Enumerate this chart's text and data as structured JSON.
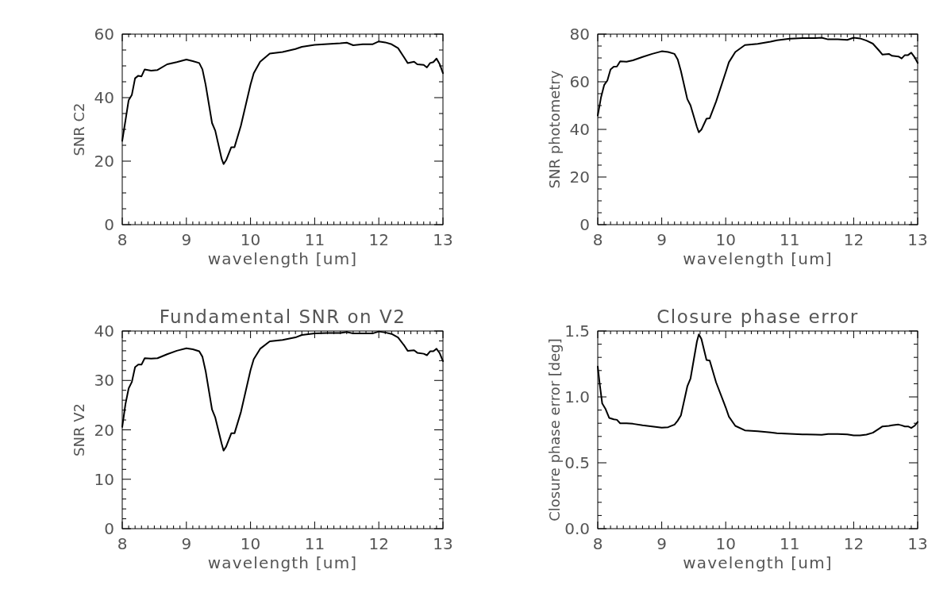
{
  "chart_data": [
    {
      "type": "line",
      "xlabel": "wavelength [um]",
      "ylabel": "SNR C2",
      "color": "#000000",
      "xlim": [
        8,
        13
      ],
      "ylim": [
        0,
        60
      ],
      "x": [
        8.0,
        8.05,
        8.1,
        8.15,
        8.2,
        8.25,
        8.3,
        8.35,
        8.45,
        8.55,
        8.7,
        8.85,
        9.0,
        9.1,
        9.2,
        9.25,
        9.3,
        9.4,
        9.45,
        9.55,
        9.58,
        9.62,
        9.7,
        9.75,
        9.85,
        10.0,
        10.05,
        10.15,
        10.3,
        10.5,
        10.7,
        10.8,
        11.0,
        11.2,
        11.4,
        11.5,
        11.6,
        11.75,
        11.9,
        12.0,
        12.1,
        12.2,
        12.3,
        12.4,
        12.45,
        12.55,
        12.6,
        12.7,
        12.75,
        12.8,
        12.85,
        12.9,
        12.95,
        13.0
      ],
      "values": [
        26.4,
        32.8,
        39.2,
        40.9,
        46.1,
        46.9,
        46.7,
        48.9,
        48.5,
        48.7,
        50.5,
        51.2,
        52.0,
        51.5,
        50.9,
        48.9,
        44.1,
        32.0,
        29.6,
        20.7,
        19.1,
        20.3,
        24.4,
        24.4,
        31.2,
        44.1,
        47.7,
        51.3,
        53.9,
        54.4,
        55.3,
        56.0,
        56.6,
        56.9,
        57.1,
        57.3,
        56.5,
        56.8,
        56.8,
        57.7,
        57.4,
        56.8,
        55.6,
        52.5,
        50.9,
        51.3,
        50.5,
        50.3,
        49.5,
        50.9,
        51.2,
        52.3,
        50.5,
        47.7
      ],
      "xticks": [
        8,
        {
          "value": 8.1,
          "label": null
        },
        {
          "value": 8.2,
          "label": null
        },
        {
          "value": 8.3,
          "label": null
        },
        {
          "value": 8.4,
          "label": null
        },
        {
          "value": 8.5,
          "label": null
        },
        {
          "value": 8.6,
          "label": null
        },
        {
          "value": 8.7,
          "label": null
        },
        {
          "value": 8.8,
          "label": null
        },
        {
          "value": 8.9,
          "label": null
        },
        9,
        {
          "value": 9.1,
          "label": null
        },
        {
          "value": 9.2,
          "label": null
        },
        {
          "value": 9.3,
          "label": null
        },
        {
          "value": 9.4,
          "label": null
        },
        {
          "value": 9.5,
          "label": null
        },
        {
          "value": 9.6,
          "label": null
        },
        {
          "value": 9.7,
          "label": null
        },
        {
          "value": 9.8,
          "label": null
        },
        {
          "value": 9.9,
          "label": null
        },
        10,
        {
          "value": 10.1,
          "label": null
        },
        {
          "value": 10.2,
          "label": null
        },
        {
          "value": 10.3,
          "label": null
        },
        {
          "value": 10.4,
          "label": null
        },
        {
          "value": 10.5,
          "label": null
        },
        {
          "value": 10.6,
          "label": null
        },
        {
          "value": 10.7,
          "label": null
        },
        {
          "value": 10.8,
          "label": null
        },
        {
          "value": 10.9,
          "label": null
        },
        11,
        {
          "value": 11.1,
          "label": null
        },
        {
          "value": 11.2,
          "label": null
        },
        {
          "value": 11.3,
          "label": null
        },
        {
          "value": 11.4,
          "label": null
        },
        {
          "value": 11.5,
          "label": null
        },
        {
          "value": 11.6,
          "label": null
        },
        {
          "value": 11.7,
          "label": null
        },
        {
          "value": 11.8,
          "label": null
        },
        {
          "value": 11.9,
          "label": null
        },
        12,
        {
          "value": 12.1,
          "label": null
        },
        {
          "value": 12.2,
          "label": null
        },
        {
          "value": 12.3,
          "label": null
        },
        {
          "value": 12.4,
          "label": null
        },
        {
          "value": 12.5,
          "label": null
        },
        {
          "value": 12.6,
          "label": null
        },
        {
          "value": 12.7,
          "label": null
        },
        {
          "value": 12.8,
          "label": null
        },
        {
          "value": 12.9,
          "label": null
        },
        13
      ],
      "yticks": [
        0,
        {
          "value": 5,
          "label": null
        },
        {
          "value": 10,
          "label": null
        },
        {
          "value": 15,
          "label": null
        },
        20,
        {
          "value": 25,
          "label": null
        },
        {
          "value": 30,
          "label": null
        },
        {
          "value": 35,
          "label": null
        },
        40,
        {
          "value": 45,
          "label": null
        },
        {
          "value": 50,
          "label": null
        },
        {
          "value": 55,
          "label": null
        },
        60
      ]
    },
    {
      "type": "line",
      "xlabel": "wavelength [um]",
      "ylabel": "SNR photometry",
      "color": "#000000",
      "xlim": [
        8,
        13
      ],
      "ylim": [
        0,
        80
      ],
      "x": [
        8.0,
        8.05,
        8.1,
        8.15,
        8.2,
        8.25,
        8.3,
        8.35,
        8.45,
        8.55,
        8.7,
        8.85,
        9.0,
        9.1,
        9.2,
        9.25,
        9.3,
        9.4,
        9.45,
        9.55,
        9.58,
        9.62,
        9.7,
        9.75,
        9.85,
        10.0,
        10.05,
        10.15,
        10.3,
        10.5,
        10.7,
        10.8,
        11.0,
        11.2,
        11.4,
        11.5,
        11.6,
        11.75,
        11.9,
        12.0,
        12.1,
        12.2,
        12.3,
        12.4,
        12.45,
        12.55,
        12.6,
        12.7,
        12.75,
        12.8,
        12.85,
        12.9,
        12.95,
        13.0
      ],
      "values": [
        45.8,
        53.3,
        58.6,
        60.5,
        65.2,
        66.3,
        66.4,
        68.6,
        68.4,
        69.0,
        70.4,
        71.7,
        72.8,
        72.5,
        71.7,
        69.3,
        64.5,
        52.7,
        50.1,
        41.0,
        38.8,
        39.9,
        44.5,
        44.7,
        51.7,
        64.0,
        68.2,
        72.5,
        75.4,
        75.9,
        76.8,
        77.4,
        78.1,
        78.3,
        78.3,
        78.5,
        77.8,
        77.8,
        77.6,
        78.5,
        78.2,
        77.3,
        76.0,
        73.0,
        71.4,
        71.7,
        70.9,
        70.6,
        69.8,
        71.2,
        71.2,
        72.2,
        70.4,
        67.9
      ],
      "xticks": [
        8,
        {
          "value": 8.1,
          "label": null
        },
        {
          "value": 8.2,
          "label": null
        },
        {
          "value": 8.3,
          "label": null
        },
        {
          "value": 8.4,
          "label": null
        },
        {
          "value": 8.5,
          "label": null
        },
        {
          "value": 8.6,
          "label": null
        },
        {
          "value": 8.7,
          "label": null
        },
        {
          "value": 8.8,
          "label": null
        },
        {
          "value": 8.9,
          "label": null
        },
        9,
        {
          "value": 9.1,
          "label": null
        },
        {
          "value": 9.2,
          "label": null
        },
        {
          "value": 9.3,
          "label": null
        },
        {
          "value": 9.4,
          "label": null
        },
        {
          "value": 9.5,
          "label": null
        },
        {
          "value": 9.6,
          "label": null
        },
        {
          "value": 9.7,
          "label": null
        },
        {
          "value": 9.8,
          "label": null
        },
        {
          "value": 9.9,
          "label": null
        },
        10,
        {
          "value": 10.1,
          "label": null
        },
        {
          "value": 10.2,
          "label": null
        },
        {
          "value": 10.3,
          "label": null
        },
        {
          "value": 10.4,
          "label": null
        },
        {
          "value": 10.5,
          "label": null
        },
        {
          "value": 10.6,
          "label": null
        },
        {
          "value": 10.7,
          "label": null
        },
        {
          "value": 10.8,
          "label": null
        },
        {
          "value": 10.9,
          "label": null
        },
        11,
        {
          "value": 11.1,
          "label": null
        },
        {
          "value": 11.2,
          "label": null
        },
        {
          "value": 11.3,
          "label": null
        },
        {
          "value": 11.4,
          "label": null
        },
        {
          "value": 11.5,
          "label": null
        },
        {
          "value": 11.6,
          "label": null
        },
        {
          "value": 11.7,
          "label": null
        },
        {
          "value": 11.8,
          "label": null
        },
        {
          "value": 11.9,
          "label": null
        },
        12,
        {
          "value": 12.1,
          "label": null
        },
        {
          "value": 12.2,
          "label": null
        },
        {
          "value": 12.3,
          "label": null
        },
        {
          "value": 12.4,
          "label": null
        },
        {
          "value": 12.5,
          "label": null
        },
        {
          "value": 12.6,
          "label": null
        },
        {
          "value": 12.7,
          "label": null
        },
        {
          "value": 12.8,
          "label": null
        },
        {
          "value": 12.9,
          "label": null
        },
        13
      ],
      "yticks": [
        0,
        {
          "value": 5,
          "label": null
        },
        {
          "value": 10,
          "label": null
        },
        {
          "value": 15,
          "label": null
        },
        20,
        {
          "value": 25,
          "label": null
        },
        {
          "value": 30,
          "label": null
        },
        {
          "value": 35,
          "label": null
        },
        40,
        {
          "value": 45,
          "label": null
        },
        {
          "value": 50,
          "label": null
        },
        {
          "value": 55,
          "label": null
        },
        60,
        {
          "value": 65,
          "label": null
        },
        {
          "value": 70,
          "label": null
        },
        {
          "value": 75,
          "label": null
        },
        80
      ]
    },
    {
      "type": "line",
      "title": "Fundamental SNR on V2",
      "xlabel": "wavelength [um]",
      "ylabel": "SNR V2",
      "color": "#000000",
      "xlim": [
        8,
        13
      ],
      "ylim": [
        0,
        40
      ],
      "x": [
        8.0,
        8.05,
        8.1,
        8.15,
        8.2,
        8.25,
        8.3,
        8.35,
        8.45,
        8.55,
        8.7,
        8.85,
        9.0,
        9.1,
        9.2,
        9.25,
        9.3,
        9.4,
        9.45,
        9.55,
        9.58,
        9.62,
        9.7,
        9.75,
        9.85,
        10.0,
        10.05,
        10.15,
        10.3,
        10.5,
        10.7,
        10.8,
        11.0,
        11.2,
        11.4,
        11.5,
        11.6,
        11.75,
        11.9,
        12.0,
        12.1,
        12.2,
        12.3,
        12.4,
        12.45,
        12.55,
        12.6,
        12.7,
        12.75,
        12.8,
        12.85,
        12.9,
        12.95,
        13.0
      ],
      "values": [
        20.6,
        25.2,
        28.4,
        29.7,
        32.7,
        33.2,
        33.2,
        34.5,
        34.4,
        34.5,
        35.3,
        36.0,
        36.5,
        36.3,
        35.9,
        34.8,
        31.9,
        24.1,
        22.5,
        17.2,
        15.8,
        16.6,
        19.3,
        19.3,
        23.6,
        32.1,
        34.3,
        36.4,
        37.9,
        38.2,
        38.7,
        39.2,
        39.5,
        39.6,
        39.6,
        39.8,
        39.5,
        39.5,
        39.5,
        39.9,
        39.7,
        39.4,
        38.7,
        37.0,
        36.0,
        36.1,
        35.6,
        35.4,
        35.1,
        35.9,
        35.9,
        36.4,
        35.5,
        33.9
      ],
      "xticks": [
        8,
        {
          "value": 8.1,
          "label": null
        },
        {
          "value": 8.2,
          "label": null
        },
        {
          "value": 8.3,
          "label": null
        },
        {
          "value": 8.4,
          "label": null
        },
        {
          "value": 8.5,
          "label": null
        },
        {
          "value": 8.6,
          "label": null
        },
        {
          "value": 8.7,
          "label": null
        },
        {
          "value": 8.8,
          "label": null
        },
        {
          "value": 8.9,
          "label": null
        },
        9,
        {
          "value": 9.1,
          "label": null
        },
        {
          "value": 9.2,
          "label": null
        },
        {
          "value": 9.3,
          "label": null
        },
        {
          "value": 9.4,
          "label": null
        },
        {
          "value": 9.5,
          "label": null
        },
        {
          "value": 9.6,
          "label": null
        },
        {
          "value": 9.7,
          "label": null
        },
        {
          "value": 9.8,
          "label": null
        },
        {
          "value": 9.9,
          "label": null
        },
        10,
        {
          "value": 10.1,
          "label": null
        },
        {
          "value": 10.2,
          "label": null
        },
        {
          "value": 10.3,
          "label": null
        },
        {
          "value": 10.4,
          "label": null
        },
        {
          "value": 10.5,
          "label": null
        },
        {
          "value": 10.6,
          "label": null
        },
        {
          "value": 10.7,
          "label": null
        },
        {
          "value": 10.8,
          "label": null
        },
        {
          "value": 10.9,
          "label": null
        },
        11,
        {
          "value": 11.1,
          "label": null
        },
        {
          "value": 11.2,
          "label": null
        },
        {
          "value": 11.3,
          "label": null
        },
        {
          "value": 11.4,
          "label": null
        },
        {
          "value": 11.5,
          "label": null
        },
        {
          "value": 11.6,
          "label": null
        },
        {
          "value": 11.7,
          "label": null
        },
        {
          "value": 11.8,
          "label": null
        },
        {
          "value": 11.9,
          "label": null
        },
        12,
        {
          "value": 12.1,
          "label": null
        },
        {
          "value": 12.2,
          "label": null
        },
        {
          "value": 12.3,
          "label": null
        },
        {
          "value": 12.4,
          "label": null
        },
        {
          "value": 12.5,
          "label": null
        },
        {
          "value": 12.6,
          "label": null
        },
        {
          "value": 12.7,
          "label": null
        },
        {
          "value": 12.8,
          "label": null
        },
        {
          "value": 12.9,
          "label": null
        },
        13
      ],
      "yticks": [
        0,
        {
          "value": 2,
          "label": null
        },
        {
          "value": 4,
          "label": null
        },
        {
          "value": 6,
          "label": null
        },
        {
          "value": 8,
          "label": null
        },
        10,
        {
          "value": 12,
          "label": null
        },
        {
          "value": 14,
          "label": null
        },
        {
          "value": 16,
          "label": null
        },
        {
          "value": 18,
          "label": null
        },
        20,
        {
          "value": 22,
          "label": null
        },
        {
          "value": 24,
          "label": null
        },
        {
          "value": 26,
          "label": null
        },
        {
          "value": 28,
          "label": null
        },
        30,
        {
          "value": 32,
          "label": null
        },
        {
          "value": 34,
          "label": null
        },
        {
          "value": 36,
          "label": null
        },
        {
          "value": 38,
          "label": null
        },
        40
      ]
    },
    {
      "type": "line",
      "title": "Closure phase error",
      "xlabel": "wavelength [um]",
      "ylabel": "Closure phase error [deg]",
      "color": "#000000",
      "xlim": [
        8,
        13
      ],
      "ylim": [
        0,
        1.5
      ],
      "x": [
        8.0,
        8.03,
        8.07,
        8.12,
        8.18,
        8.25,
        8.3,
        8.35,
        8.45,
        8.55,
        8.7,
        8.85,
        9.0,
        9.1,
        9.2,
        9.25,
        9.3,
        9.4,
        9.45,
        9.5,
        9.55,
        9.58,
        9.62,
        9.7,
        9.75,
        9.85,
        10.0,
        10.05,
        10.15,
        10.3,
        10.5,
        10.7,
        10.8,
        11.0,
        11.2,
        11.4,
        11.5,
        11.6,
        11.75,
        11.9,
        12.0,
        12.1,
        12.2,
        12.3,
        12.4,
        12.45,
        12.55,
        12.6,
        12.7,
        12.75,
        12.8,
        12.85,
        12.9,
        12.95,
        13.0
      ],
      "values": [
        1.23,
        1.1,
        0.95,
        0.91,
        0.84,
        0.83,
        0.826,
        0.8,
        0.8,
        0.796,
        0.784,
        0.776,
        0.766,
        0.77,
        0.79,
        0.82,
        0.86,
        1.08,
        1.14,
        1.28,
        1.42,
        1.474,
        1.44,
        1.28,
        1.276,
        1.11,
        0.92,
        0.85,
        0.78,
        0.746,
        0.74,
        0.73,
        0.724,
        0.72,
        0.716,
        0.714,
        0.712,
        0.718,
        0.718,
        0.716,
        0.708,
        0.708,
        0.714,
        0.728,
        0.76,
        0.776,
        0.78,
        0.784,
        0.79,
        0.784,
        0.776,
        0.776,
        0.764,
        0.78,
        0.81
      ],
      "xticks": [
        8,
        {
          "value": 8.1,
          "label": null
        },
        {
          "value": 8.2,
          "label": null
        },
        {
          "value": 8.3,
          "label": null
        },
        {
          "value": 8.4,
          "label": null
        },
        {
          "value": 8.5,
          "label": null
        },
        {
          "value": 8.6,
          "label": null
        },
        {
          "value": 8.7,
          "label": null
        },
        {
          "value": 8.8,
          "label": null
        },
        {
          "value": 8.9,
          "label": null
        },
        9,
        {
          "value": 9.1,
          "label": null
        },
        {
          "value": 9.2,
          "label": null
        },
        {
          "value": 9.3,
          "label": null
        },
        {
          "value": 9.4,
          "label": null
        },
        {
          "value": 9.5,
          "label": null
        },
        {
          "value": 9.6,
          "label": null
        },
        {
          "value": 9.7,
          "label": null
        },
        {
          "value": 9.8,
          "label": null
        },
        {
          "value": 9.9,
          "label": null
        },
        10,
        {
          "value": 10.1,
          "label": null
        },
        {
          "value": 10.2,
          "label": null
        },
        {
          "value": 10.3,
          "label": null
        },
        {
          "value": 10.4,
          "label": null
        },
        {
          "value": 10.5,
          "label": null
        },
        {
          "value": 10.6,
          "label": null
        },
        {
          "value": 10.7,
          "label": null
        },
        {
          "value": 10.8,
          "label": null
        },
        {
          "value": 10.9,
          "label": null
        },
        11,
        {
          "value": 11.1,
          "label": null
        },
        {
          "value": 11.2,
          "label": null
        },
        {
          "value": 11.3,
          "label": null
        },
        {
          "value": 11.4,
          "label": null
        },
        {
          "value": 11.5,
          "label": null
        },
        {
          "value": 11.6,
          "label": null
        },
        {
          "value": 11.7,
          "label": null
        },
        {
          "value": 11.8,
          "label": null
        },
        {
          "value": 11.9,
          "label": null
        },
        12,
        {
          "value": 12.1,
          "label": null
        },
        {
          "value": 12.2,
          "label": null
        },
        {
          "value": 12.3,
          "label": null
        },
        {
          "value": 12.4,
          "label": null
        },
        {
          "value": 12.5,
          "label": null
        },
        {
          "value": 12.6,
          "label": null
        },
        {
          "value": 12.7,
          "label": null
        },
        {
          "value": 12.8,
          "label": null
        },
        {
          "value": 12.9,
          "label": null
        },
        13
      ],
      "yticks": [
        {
          "value": 0,
          "label": "0.0"
        },
        {
          "value": 0.1,
          "label": null
        },
        {
          "value": 0.2,
          "label": null
        },
        {
          "value": 0.3,
          "label": null
        },
        {
          "value": 0.4,
          "label": null
        },
        0.5,
        {
          "value": 0.6,
          "label": null
        },
        {
          "value": 0.7,
          "label": null
        },
        {
          "value": 0.8,
          "label": null
        },
        {
          "value": 0.9,
          "label": null
        },
        {
          "value": 1,
          "label": "1.0"
        },
        {
          "value": 1.1,
          "label": null
        },
        {
          "value": 1.2,
          "label": null
        },
        {
          "value": 1.3,
          "label": null
        },
        {
          "value": 1.4,
          "label": null
        },
        1.5
      ]
    }
  ]
}
